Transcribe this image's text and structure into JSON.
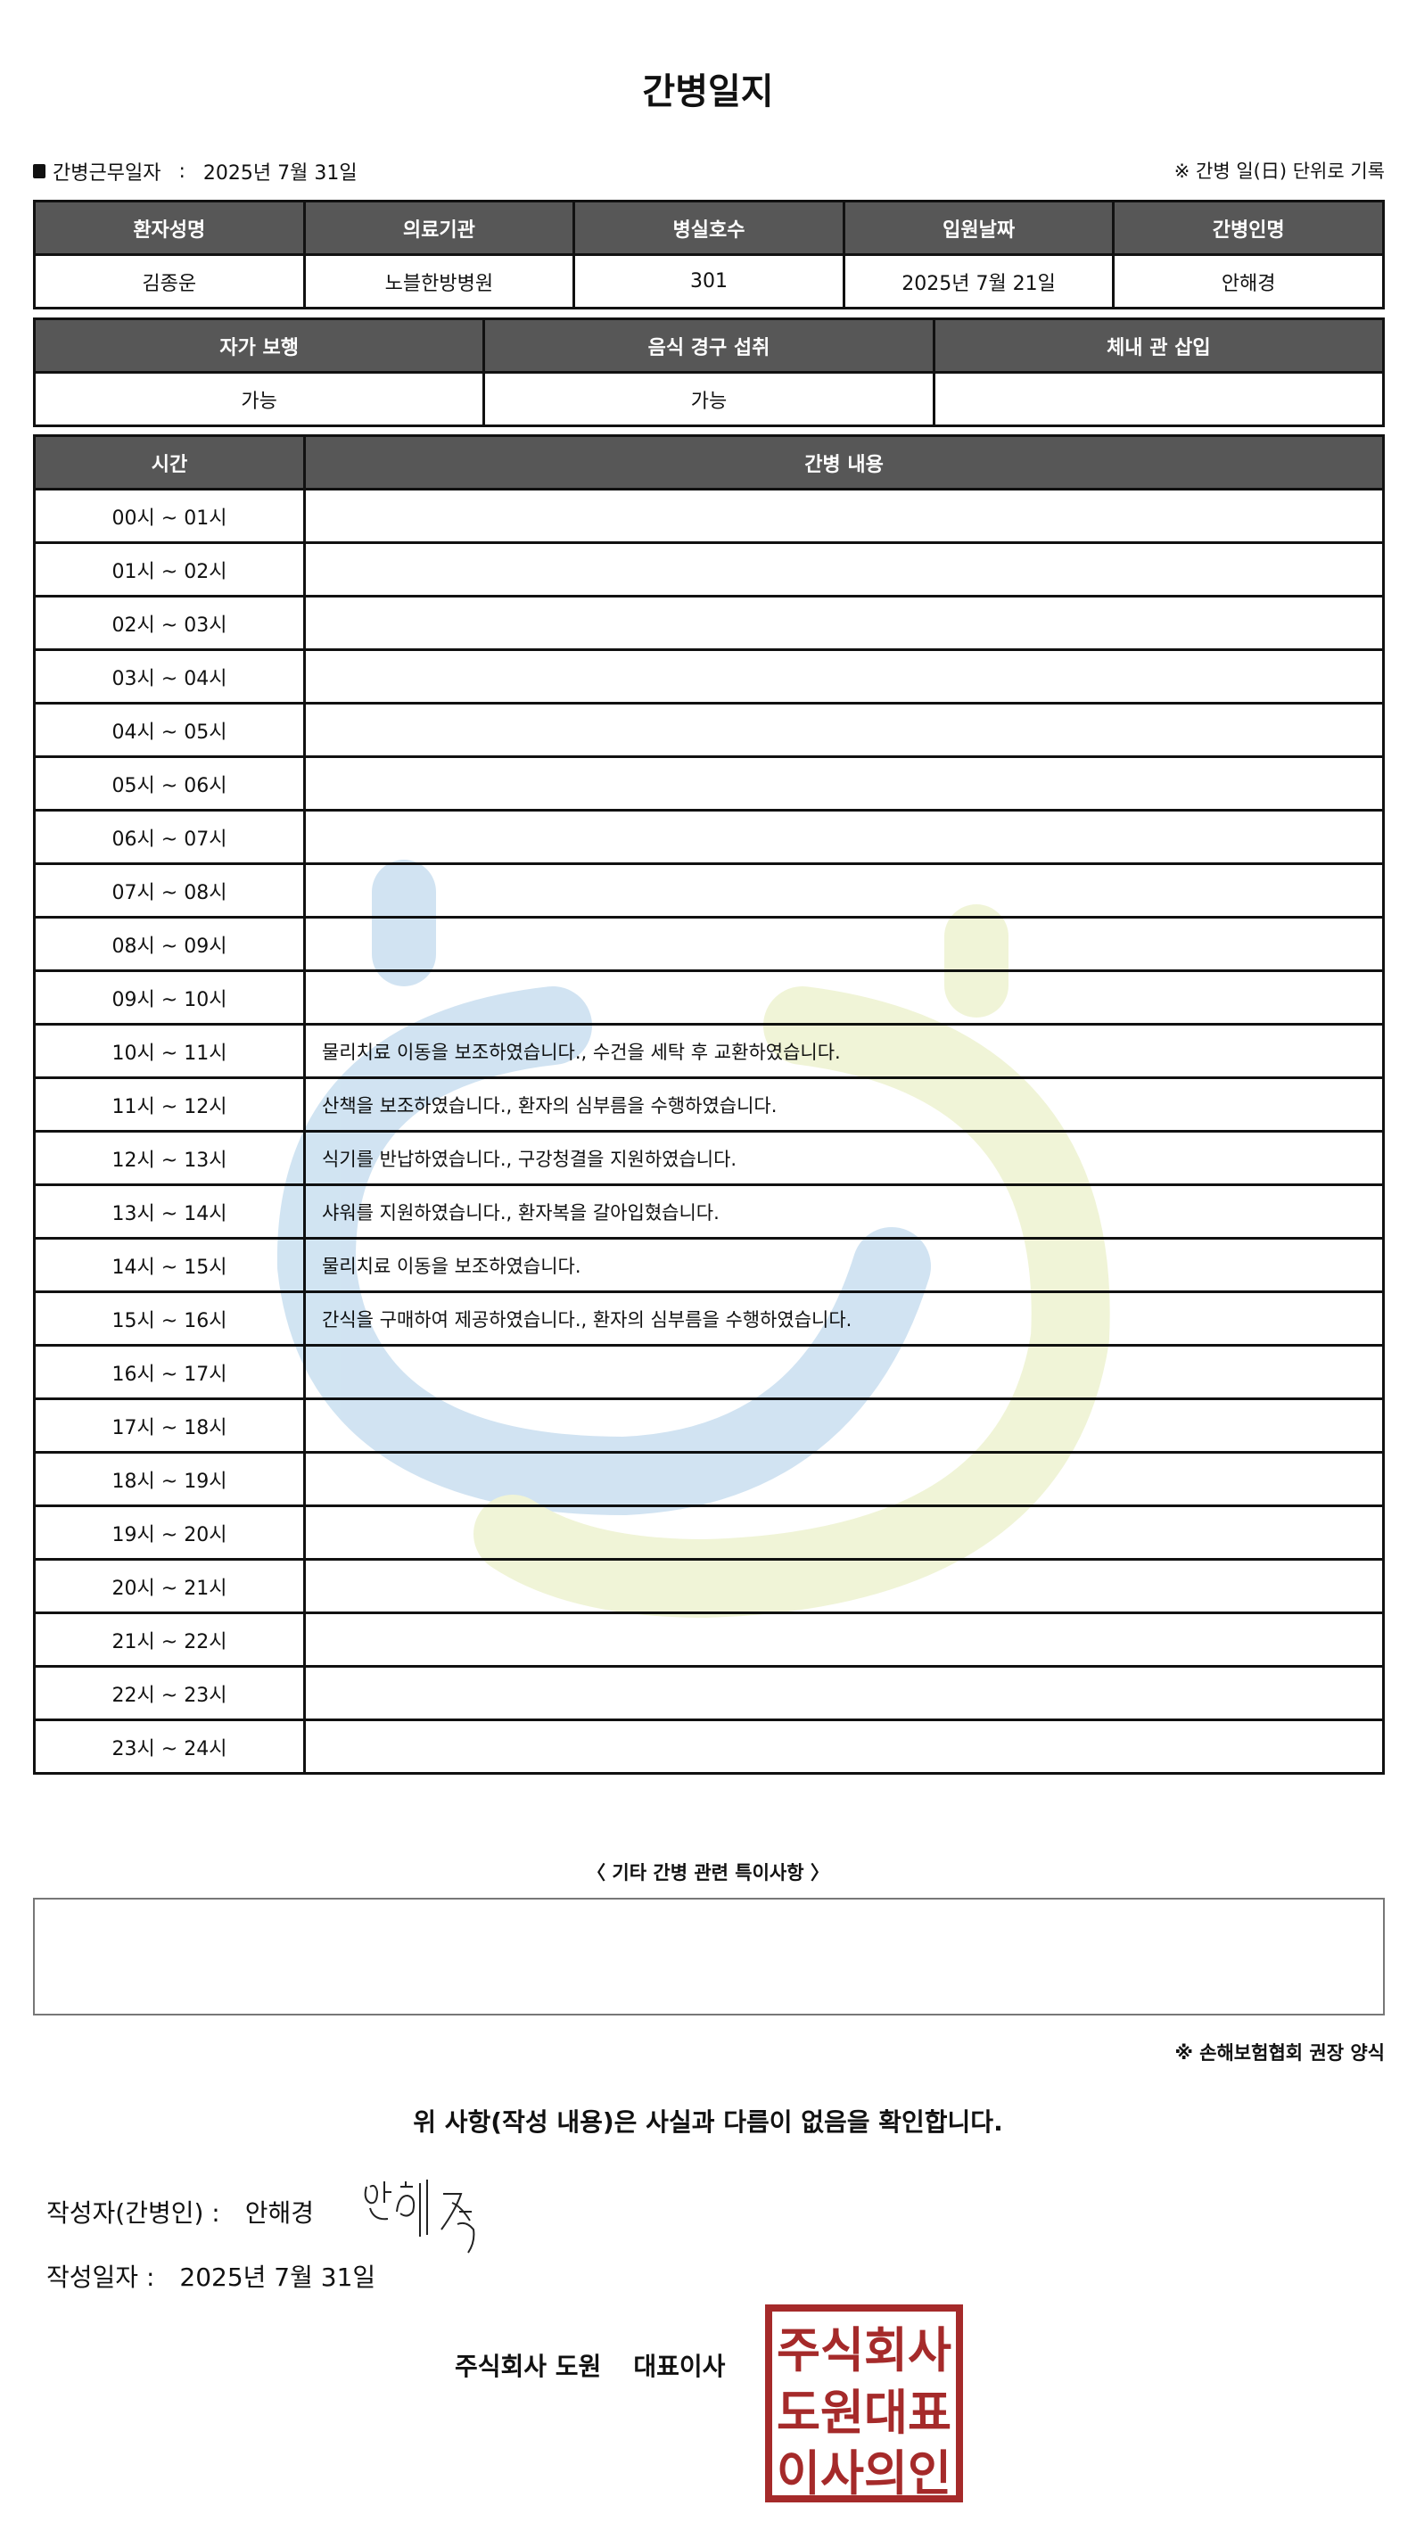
{
  "title": "간병일지",
  "work_date_label": "간병근무일자",
  "work_date_sep": ":",
  "work_date": "2025년 7월 31일",
  "record_note": "※ 간병 일(日) 단위로 기록",
  "patient_table": {
    "headers": [
      "환자성명",
      "의료기관",
      "병실호수",
      "입원날짜",
      "간병인명"
    ],
    "values": [
      "김종운",
      "노블한방병원",
      "301",
      "2025년 7월 21일",
      "안해경"
    ]
  },
  "status_table": {
    "headers": [
      "자가 보행",
      "음식 경구 섭취",
      "체내 관 삽입"
    ],
    "values": [
      "가능",
      "가능",
      ""
    ]
  },
  "log_table": {
    "headers": [
      "시간",
      "간병 내용"
    ],
    "rows": [
      {
        "time": "00시 ~ 01시",
        "content": ""
      },
      {
        "time": "01시 ~ 02시",
        "content": ""
      },
      {
        "time": "02시 ~ 03시",
        "content": ""
      },
      {
        "time": "03시 ~ 04시",
        "content": ""
      },
      {
        "time": "04시 ~ 05시",
        "content": ""
      },
      {
        "time": "05시 ~ 06시",
        "content": ""
      },
      {
        "time": "06시 ~ 07시",
        "content": ""
      },
      {
        "time": "07시 ~ 08시",
        "content": ""
      },
      {
        "time": "08시 ~ 09시",
        "content": ""
      },
      {
        "time": "09시 ~ 10시",
        "content": ""
      },
      {
        "time": "10시 ~ 11시",
        "content": "물리치료 이동을 보조하였습니다., 수건을 세탁 후 교환하였습니다."
      },
      {
        "time": "11시 ~ 12시",
        "content": "산책을 보조하였습니다., 환자의 심부름을 수행하였습니다."
      },
      {
        "time": "12시 ~ 13시",
        "content": "식기를 반납하였습니다., 구강청결을 지원하였습니다."
      },
      {
        "time": "13시 ~ 14시",
        "content": "샤워를 지원하였습니다., 환자복을 갈아입혔습니다."
      },
      {
        "time": "14시 ~ 15시",
        "content": "물리치료 이동을 보조하였습니다."
      },
      {
        "time": "15시 ~ 16시",
        "content": "간식을 구매하여 제공하였습니다., 환자의 심부름을 수행하였습니다."
      },
      {
        "time": "16시 ~ 17시",
        "content": ""
      },
      {
        "time": "17시 ~ 18시",
        "content": ""
      },
      {
        "time": "18시 ~ 19시",
        "content": ""
      },
      {
        "time": "19시 ~ 20시",
        "content": ""
      },
      {
        "time": "20시 ~ 21시",
        "content": ""
      },
      {
        "time": "21시 ~ 22시",
        "content": ""
      },
      {
        "time": "22시 ~ 23시",
        "content": ""
      },
      {
        "time": "23시 ~ 24시",
        "content": ""
      }
    ]
  },
  "special_notes_label": "〈 기타 간병 관련 특이사항 〉",
  "special_notes": "",
  "association_note": "※ 손해보험협회 권장 양식",
  "confirmation": "위 사항(작성 내용)은 사실과 다름이 없음을 확인합니다.",
  "writer_label": "작성자(간병인) :",
  "writer_name": "안해경",
  "signature_text": "안해경",
  "write_date_label": "작성일자 :",
  "write_date": "2025년 7월 31일",
  "company_name": "주식회사 도원",
  "company_title": "대표이사",
  "stamp_text": "주식회사도원대표이사의인",
  "colors": {
    "header_bg": "#575757",
    "stamp_red": "#a52a2a",
    "watermark_blue": "#c9dff0",
    "watermark_green": "#eef3d0"
  },
  "icons": {
    "bullet": "black-square-bullet"
  }
}
